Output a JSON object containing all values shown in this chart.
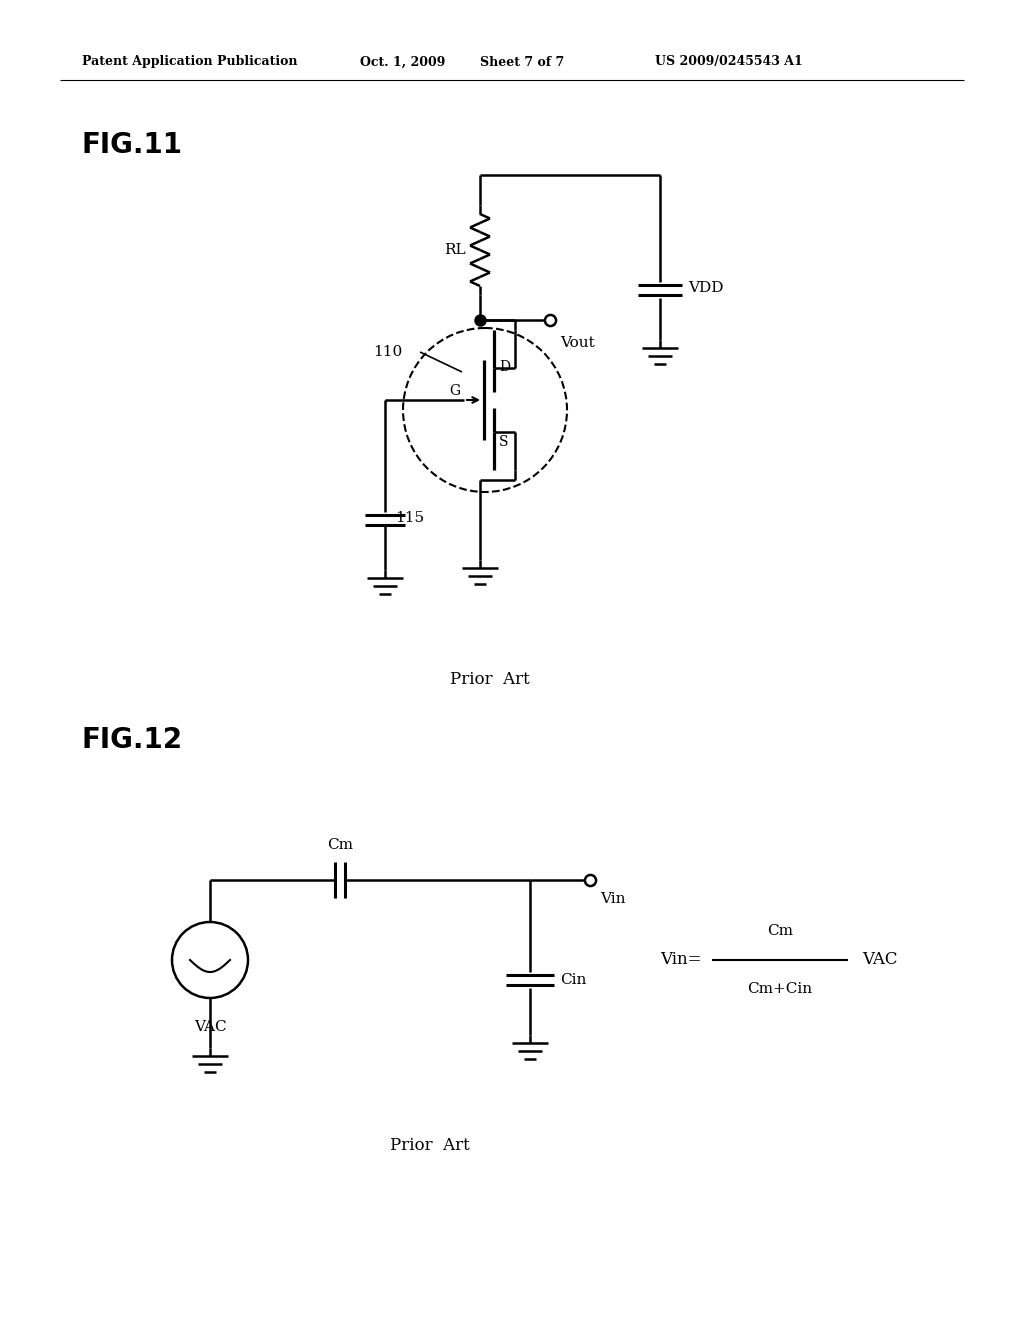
{
  "background_color": "#ffffff",
  "header_text": "Patent Application Publication",
  "header_date": "Oct. 1, 2009",
  "header_sheet": "Sheet 7 of 7",
  "header_patent": "US 2009/0245543 A1",
  "fig11_label": "FIG.11",
  "fig12_label": "FIG.12",
  "prior_art": "Prior  Art",
  "lw": 1.8
}
